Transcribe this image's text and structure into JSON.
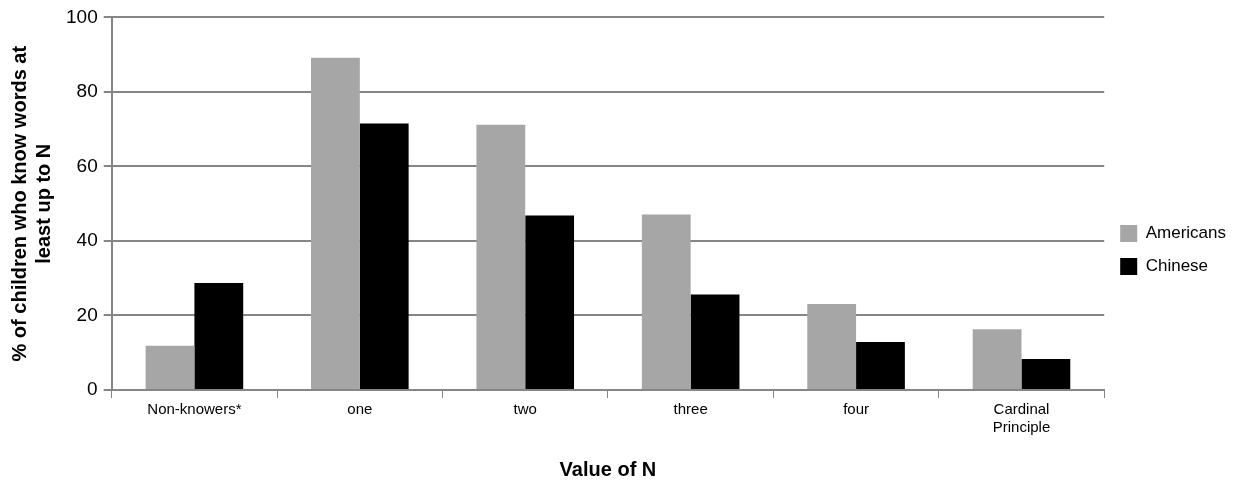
{
  "chart_data": {
    "type": "bar",
    "xlabel": "Value of N",
    "ylabel": "% of children who know words at least up to N",
    "categories": [
      "Non-knowers*",
      "one",
      "two",
      "three",
      "four",
      "Cardinal Principle"
    ],
    "series": [
      {
        "name": "Americans",
        "color": "#a6a6a6",
        "values": [
          11.9,
          89.2,
          71.2,
          47.1,
          23.1,
          16.3
        ]
      },
      {
        "name": "Chinese",
        "color": "#000000",
        "values": [
          28.7,
          71.5,
          46.8,
          25.6,
          12.9,
          8.3
        ]
      }
    ],
    "ylim": [
      0,
      100
    ],
    "yticks": [
      0,
      20,
      40,
      60,
      80,
      100
    ],
    "grid": "y",
    "legend": "right"
  }
}
